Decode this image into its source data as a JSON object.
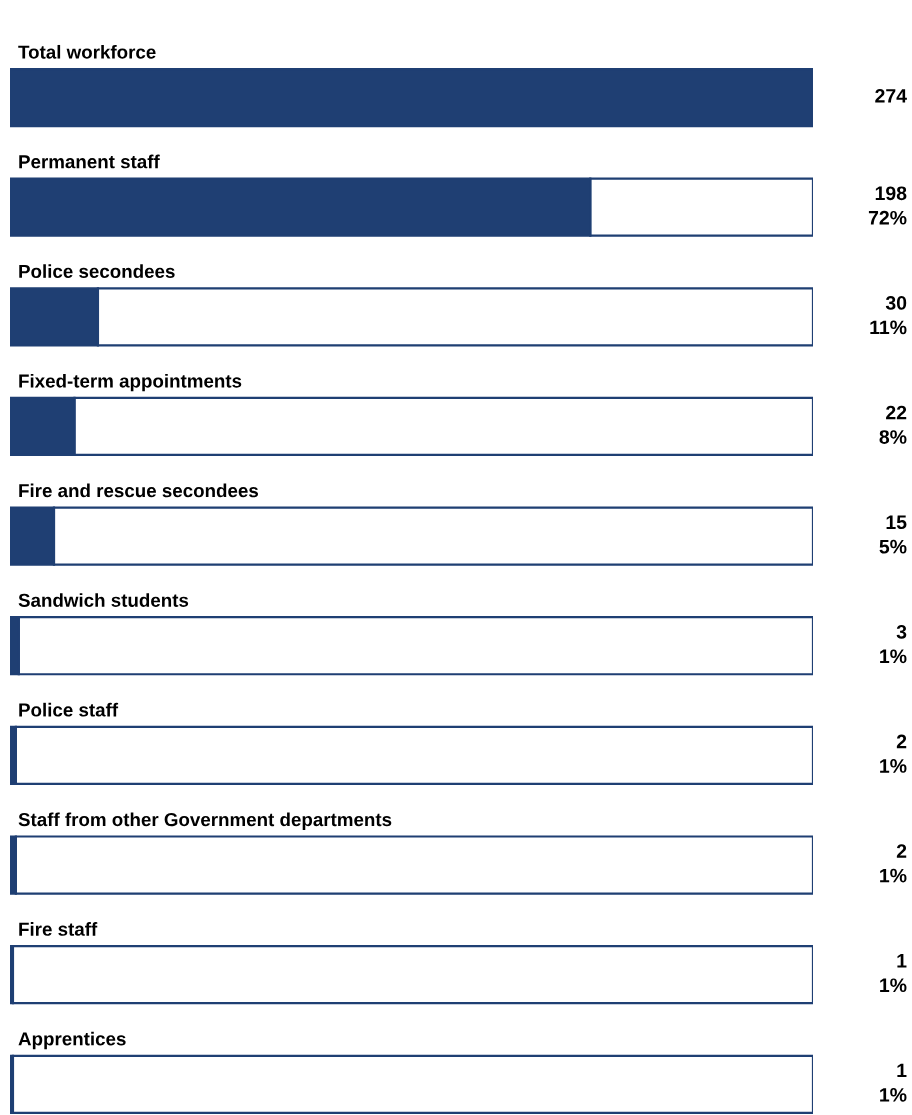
{
  "chart_data": {
    "type": "bar",
    "orientation": "horizontal",
    "categories": [
      "Total workforce",
      "Permanent staff",
      "Police secondees",
      "Fixed-term appointments",
      "Fire and rescue secondees",
      "Sandwich students",
      "Police staff",
      "Staff from other Government departments",
      "Fire staff",
      "Apprentices"
    ],
    "series": [
      {
        "color": "#1f3f73",
        "values": [
          274,
          198,
          30,
          22,
          15,
          3,
          2,
          2,
          1,
          1
        ],
        "value_labels": [
          "274",
          "198\n72%",
          "30\n11%",
          "22\n8%",
          "15\n5%",
          "3\n1%",
          "2\n1%",
          "2\n1%",
          "1\n1%",
          "1\n1%"
        ]
      },
      {
        "color": "#ffffff",
        "values": [
          null,
          76,
          244,
          252,
          259,
          271,
          272,
          272,
          273,
          273
        ]
      }
    ],
    "stacked": true,
    "xlim": [
      0,
      274
    ]
  }
}
